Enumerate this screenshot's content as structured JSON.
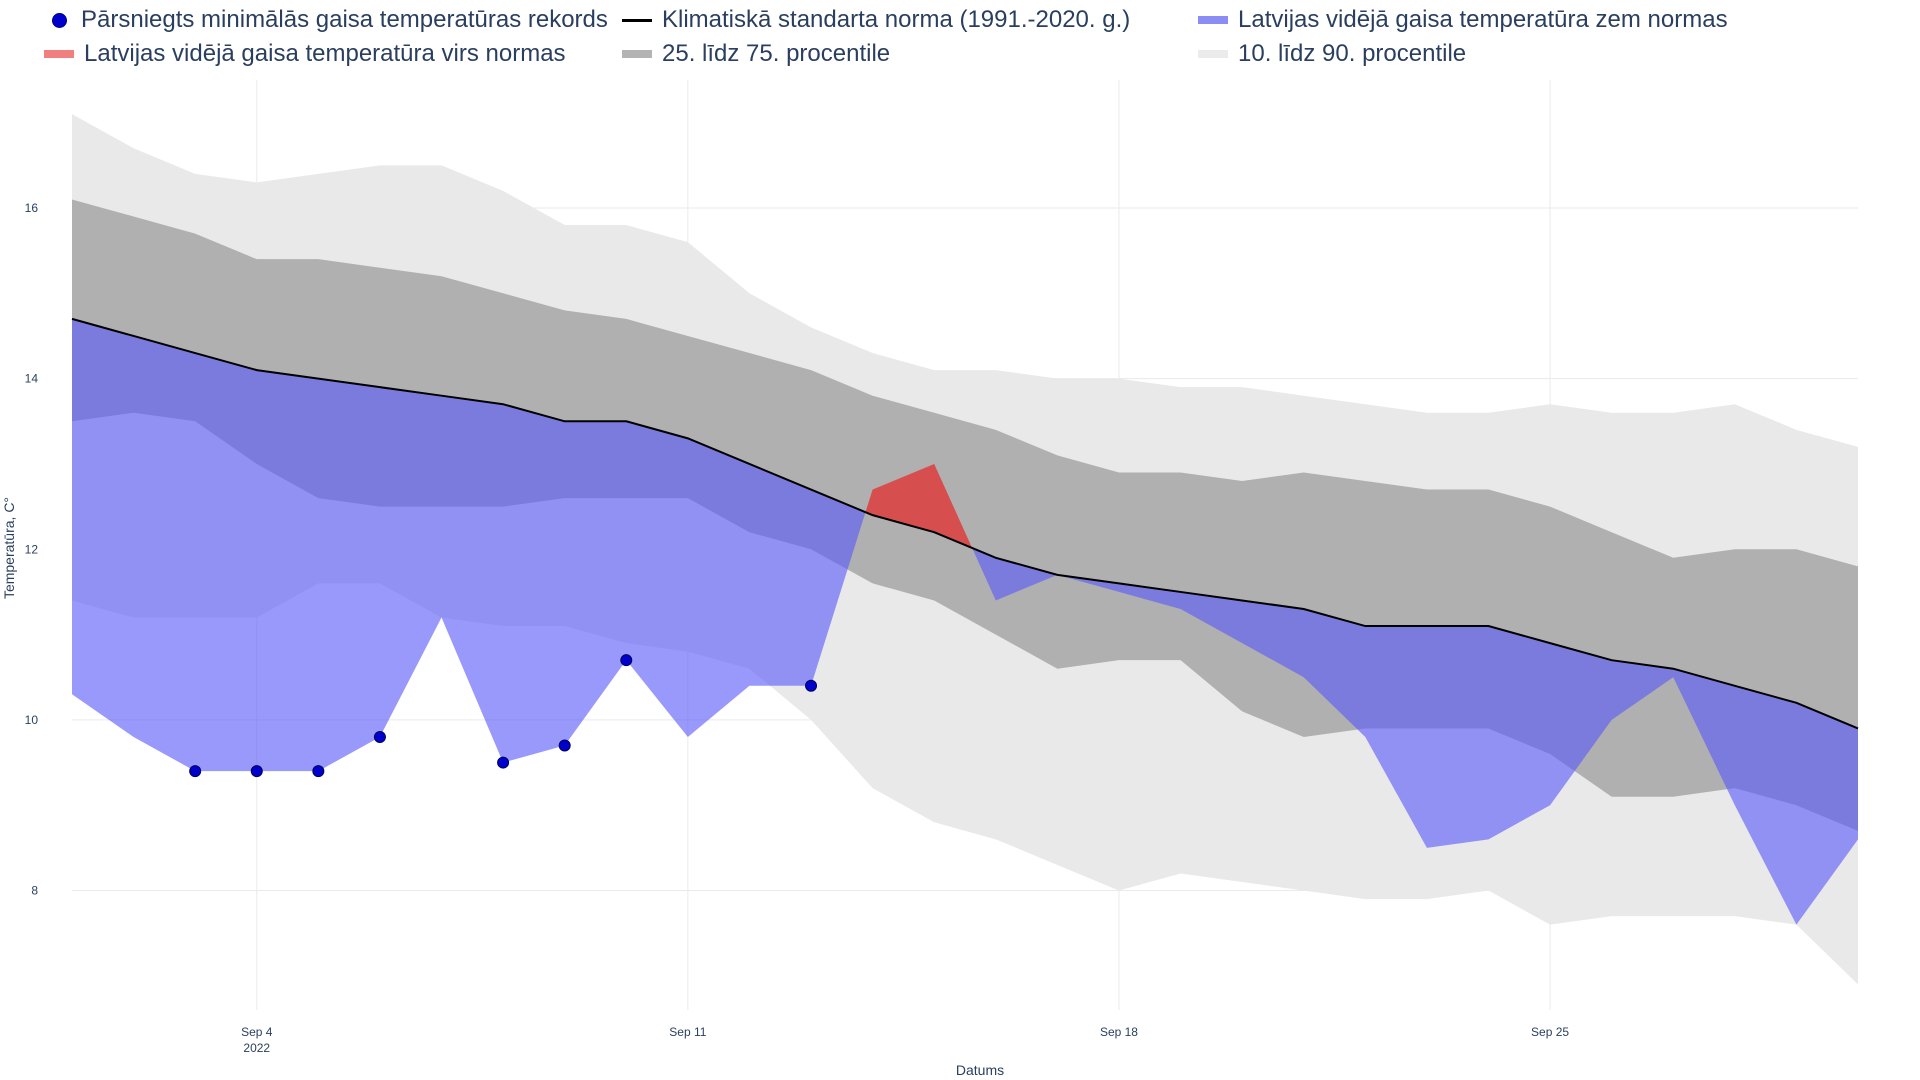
{
  "chart_data": {
    "type": "area",
    "xlabel": "Datums",
    "ylabel": "Temperatūra, C°",
    "x_start_day": 1,
    "x_end_day": 30,
    "xlim": [
      1,
      30
    ],
    "ylim": [
      6.6,
      17.5
    ],
    "x_ticks": [
      {
        "day": 4,
        "label": "Sep 4",
        "sublabel": "2022"
      },
      {
        "day": 11,
        "label": "Sep 11",
        "sublabel": ""
      },
      {
        "day": 18,
        "label": "Sep 18",
        "sublabel": ""
      },
      {
        "day": 25,
        "label": "Sep 25",
        "sublabel": ""
      }
    ],
    "y_ticks": [
      8,
      10,
      12,
      14,
      16
    ],
    "grid": true,
    "legend": [
      {
        "key": "record",
        "label": "Pārsniegts minimālās gaisa temperatūras rekords",
        "symbol": "dot",
        "color": "#0000cd"
      },
      {
        "key": "norm",
        "label": "Klimatiskā standarta norma (1991.-2020. g.)",
        "symbol": "line",
        "color": "#000000"
      },
      {
        "key": "below",
        "label": "Latvijas vidējā gaisa temperatūra zem normas",
        "symbol": "band",
        "color": "#8c8cf5"
      },
      {
        "key": "above",
        "label": "Latvijas vidējā gaisa temperatūra virs normas",
        "symbol": "band",
        "color": "#f08080"
      },
      {
        "key": "p25_75",
        "label": "25. līdz 75. procentile",
        "symbol": "band",
        "color": "#b3b3b3"
      },
      {
        "key": "p10_90",
        "label": "10. līdz 90. procentile",
        "symbol": "band",
        "color": "#ebebeb"
      }
    ],
    "colors": {
      "p10_90": "#e9e9e9",
      "p25_75": "#b0b0b0",
      "below_fill": "rgba(90,90,250,0.62)",
      "above_fill": "rgba(230,40,40,0.72)",
      "norm_line": "#000000",
      "record_marker": "#0000cd",
      "grid": "#eaeaea",
      "axis_text": "#2a3f5f"
    },
    "series": {
      "p90": [
        17.1,
        16.7,
        16.4,
        16.3,
        16.4,
        16.5,
        16.5,
        16.2,
        15.8,
        15.8,
        15.6,
        15.0,
        14.6,
        14.3,
        14.1,
        14.1,
        14.0,
        14.0,
        13.9,
        13.9,
        13.8,
        13.7,
        13.6,
        13.6,
        13.7,
        13.6,
        13.6,
        13.7,
        13.4,
        13.2
      ],
      "p75": [
        16.1,
        15.9,
        15.7,
        15.4,
        15.4,
        15.3,
        15.2,
        15.0,
        14.8,
        14.7,
        14.5,
        14.3,
        14.1,
        13.8,
        13.6,
        13.4,
        13.1,
        12.9,
        12.9,
        12.8,
        12.9,
        12.8,
        12.7,
        12.7,
        12.5,
        12.2,
        11.9,
        12.0,
        12.0,
        11.8
      ],
      "norm": [
        14.7,
        14.5,
        14.3,
        14.1,
        14.0,
        13.9,
        13.8,
        13.7,
        13.5,
        13.5,
        13.3,
        13.0,
        12.7,
        12.4,
        12.2,
        11.9,
        11.7,
        11.6,
        11.5,
        11.4,
        11.3,
        11.1,
        11.1,
        11.1,
        10.9,
        10.7,
        10.6,
        10.4,
        10.2,
        9.9
      ],
      "p25": [
        13.5,
        13.6,
        13.5,
        13.0,
        12.6,
        12.5,
        12.5,
        12.5,
        12.6,
        12.6,
        12.6,
        12.2,
        12.0,
        11.6,
        11.4,
        11.0,
        10.6,
        10.7,
        10.7,
        10.1,
        9.8,
        9.9,
        9.9,
        9.9,
        9.6,
        9.1,
        9.1,
        9.2,
        9.0,
        8.7
      ],
      "p10": [
        11.4,
        11.2,
        11.2,
        11.2,
        11.6,
        11.6,
        11.2,
        11.1,
        11.1,
        10.9,
        10.8,
        10.6,
        10.0,
        9.2,
        8.8,
        8.6,
        8.3,
        8.0,
        8.2,
        8.1,
        8.0,
        7.9,
        7.9,
        8.0,
        7.6,
        7.7,
        7.7,
        7.7,
        7.6,
        6.9
      ],
      "mean": [
        10.3,
        9.8,
        9.4,
        9.4,
        9.4,
        9.8,
        11.2,
        9.5,
        9.7,
        10.7,
        9.8,
        10.4,
        10.4,
        12.7,
        13.0,
        11.4,
        11.7,
        11.5,
        11.3,
        10.9,
        10.5,
        9.8,
        8.5,
        8.6,
        9.0,
        10.0,
        10.5,
        9.0,
        7.6,
        8.6
      ]
    },
    "record_points": [
      {
        "day": 3,
        "value": 9.4
      },
      {
        "day": 4,
        "value": 9.4
      },
      {
        "day": 5,
        "value": 9.4
      },
      {
        "day": 6,
        "value": 9.8
      },
      {
        "day": 8,
        "value": 9.5
      },
      {
        "day": 9,
        "value": 9.7
      },
      {
        "day": 10,
        "value": 10.7
      },
      {
        "day": 13,
        "value": 10.4
      }
    ]
  }
}
